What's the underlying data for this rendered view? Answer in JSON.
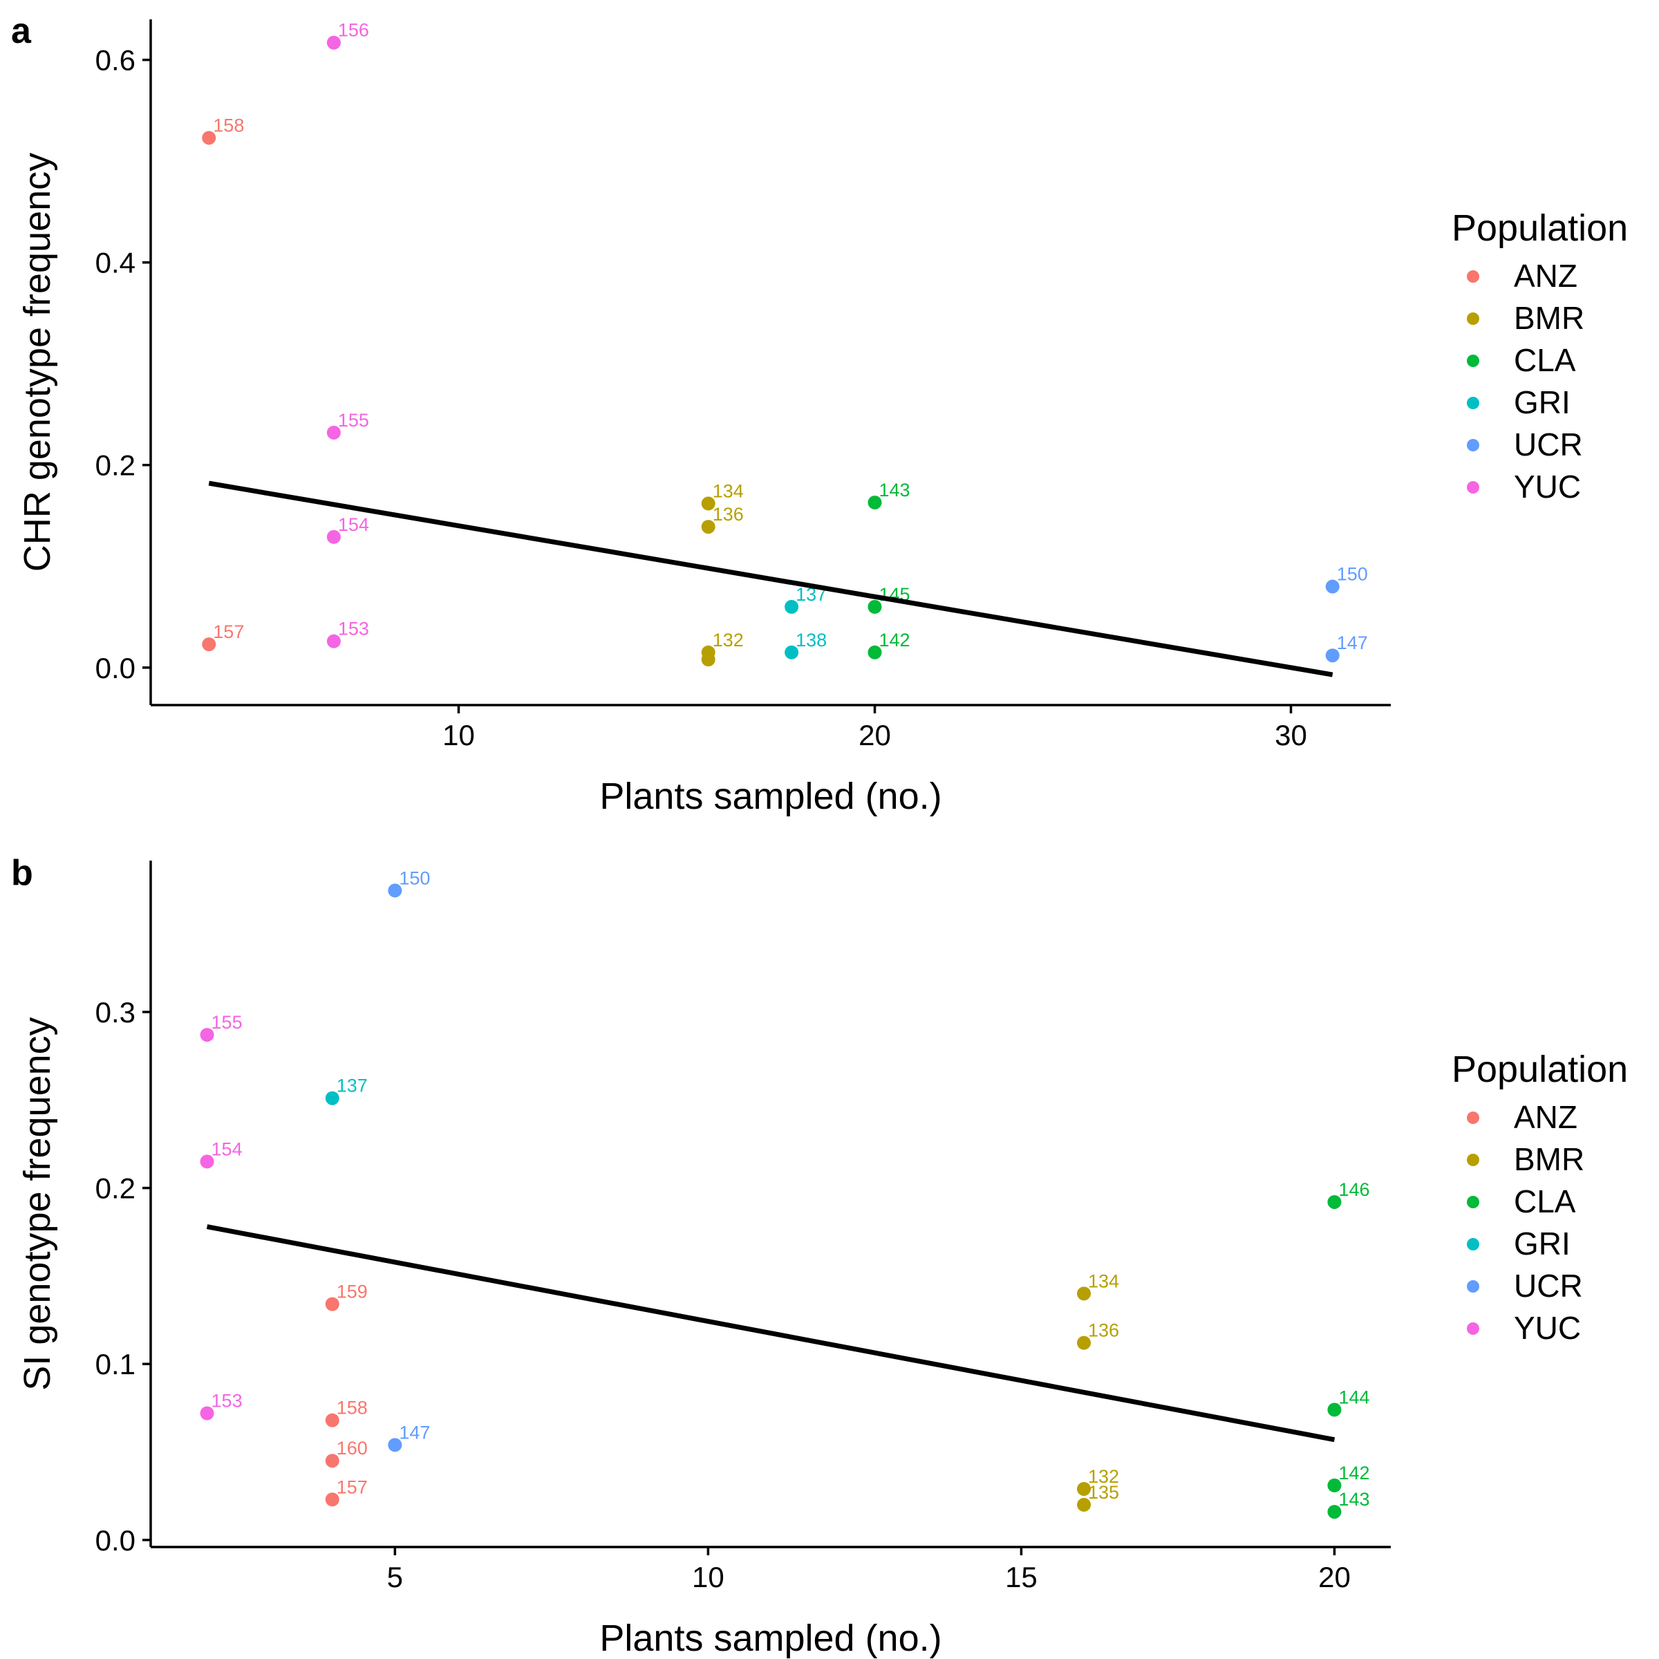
{
  "chart_data": [
    {
      "panel": "a",
      "type": "scatter",
      "xlabel": "Plants sampled (no.)",
      "ylabel": "CHR genotype frequency",
      "xlim": [
        2.6,
        32.4
      ],
      "ylim": [
        -0.037,
        0.64
      ],
      "xticks": [
        10,
        20,
        30
      ],
      "yticks": [
        0.0,
        0.2,
        0.4,
        0.6
      ],
      "ytick_labels": [
        "0.0",
        "0.2",
        "0.4",
        "0.6"
      ],
      "legend": {
        "title": "Population",
        "placement": "right",
        "items": [
          {
            "name": "ANZ",
            "color": "#F8766D"
          },
          {
            "name": "BMR",
            "color": "#B79F00"
          },
          {
            "name": "CLA",
            "color": "#00BA38"
          },
          {
            "name": "GRI",
            "color": "#00BFC4"
          },
          {
            "name": "UCR",
            "color": "#619CFF"
          },
          {
            "name": "YUC",
            "color": "#F564E3"
          }
        ]
      },
      "trend_line": {
        "x": [
          4,
          31
        ],
        "y": [
          0.182,
          -0.007
        ]
      },
      "points": [
        {
          "x": 4,
          "y": 0.523,
          "label": "158",
          "population": "ANZ"
        },
        {
          "x": 4,
          "y": 0.023,
          "label": "157",
          "population": "ANZ"
        },
        {
          "x": 7,
          "y": 0.617,
          "label": "156",
          "population": "YUC"
        },
        {
          "x": 7,
          "y": 0.232,
          "label": "155",
          "population": "YUC"
        },
        {
          "x": 7,
          "y": 0.129,
          "label": "154",
          "population": "YUC"
        },
        {
          "x": 7,
          "y": 0.026,
          "label": "153",
          "population": "YUC"
        },
        {
          "x": 16,
          "y": 0.162,
          "label": "134",
          "population": "BMR"
        },
        {
          "x": 16,
          "y": 0.139,
          "label": "136",
          "population": "BMR"
        },
        {
          "x": 16,
          "y": 0.015,
          "label": "132",
          "population": "BMR"
        },
        {
          "x": 16,
          "y": 0.008,
          "label": "",
          "population": "BMR"
        },
        {
          "x": 18,
          "y": 0.06,
          "label": "137",
          "population": "GRI"
        },
        {
          "x": 18,
          "y": 0.015,
          "label": "138",
          "population": "GRI"
        },
        {
          "x": 20,
          "y": 0.163,
          "label": "143",
          "population": "CLA"
        },
        {
          "x": 20,
          "y": 0.06,
          "label": "145",
          "population": "CLA"
        },
        {
          "x": 20,
          "y": 0.015,
          "label": "142",
          "population": "CLA"
        },
        {
          "x": 31,
          "y": 0.08,
          "label": "150",
          "population": "UCR"
        },
        {
          "x": 31,
          "y": 0.012,
          "label": "147",
          "population": "UCR"
        }
      ]
    },
    {
      "panel": "b",
      "type": "scatter",
      "xlabel": "Plants sampled (no.)",
      "ylabel": "SI genotype frequency",
      "xlim": [
        1.1,
        20.9
      ],
      "ylim": [
        -0.004,
        0.386
      ],
      "xticks": [
        5,
        10,
        15,
        20
      ],
      "yticks": [
        0.0,
        0.1,
        0.2,
        0.3
      ],
      "ytick_labels": [
        "0.0",
        "0.1",
        "0.2",
        "0.3"
      ],
      "legend": {
        "title": "Population",
        "placement": "right",
        "items": [
          {
            "name": "ANZ",
            "color": "#F8766D"
          },
          {
            "name": "BMR",
            "color": "#B79F00"
          },
          {
            "name": "CLA",
            "color": "#00BA38"
          },
          {
            "name": "GRI",
            "color": "#00BFC4"
          },
          {
            "name": "UCR",
            "color": "#619CFF"
          },
          {
            "name": "YUC",
            "color": "#F564E3"
          }
        ]
      },
      "trend_line": {
        "x": [
          2,
          20
        ],
        "y": [
          0.178,
          0.057
        ]
      },
      "points": [
        {
          "x": 5,
          "y": 0.369,
          "label": "150",
          "population": "UCR"
        },
        {
          "x": 5,
          "y": 0.054,
          "label": "147",
          "population": "UCR"
        },
        {
          "x": 2,
          "y": 0.287,
          "label": "155",
          "population": "YUC"
        },
        {
          "x": 2,
          "y": 0.215,
          "label": "154",
          "population": "YUC"
        },
        {
          "x": 2,
          "y": 0.072,
          "label": "153",
          "population": "YUC"
        },
        {
          "x": 4,
          "y": 0.251,
          "label": "137",
          "population": "GRI"
        },
        {
          "x": 4,
          "y": 0.134,
          "label": "159",
          "population": "ANZ"
        },
        {
          "x": 4,
          "y": 0.068,
          "label": "158",
          "population": "ANZ"
        },
        {
          "x": 4,
          "y": 0.045,
          "label": "160",
          "population": "ANZ"
        },
        {
          "x": 4,
          "y": 0.023,
          "label": "157",
          "population": "ANZ"
        },
        {
          "x": 16,
          "y": 0.14,
          "label": "134",
          "population": "BMR"
        },
        {
          "x": 16,
          "y": 0.112,
          "label": "136",
          "population": "BMR"
        },
        {
          "x": 16,
          "y": 0.029,
          "label": "132",
          "population": "BMR"
        },
        {
          "x": 16,
          "y": 0.02,
          "label": "135",
          "population": "BMR"
        },
        {
          "x": 20,
          "y": 0.192,
          "label": "146",
          "population": "CLA"
        },
        {
          "x": 20,
          "y": 0.074,
          "label": "144",
          "population": "CLA"
        },
        {
          "x": 20,
          "y": 0.031,
          "label": "142",
          "population": "CLA"
        },
        {
          "x": 20,
          "y": 0.016,
          "label": "143",
          "population": "CLA"
        }
      ]
    }
  ]
}
